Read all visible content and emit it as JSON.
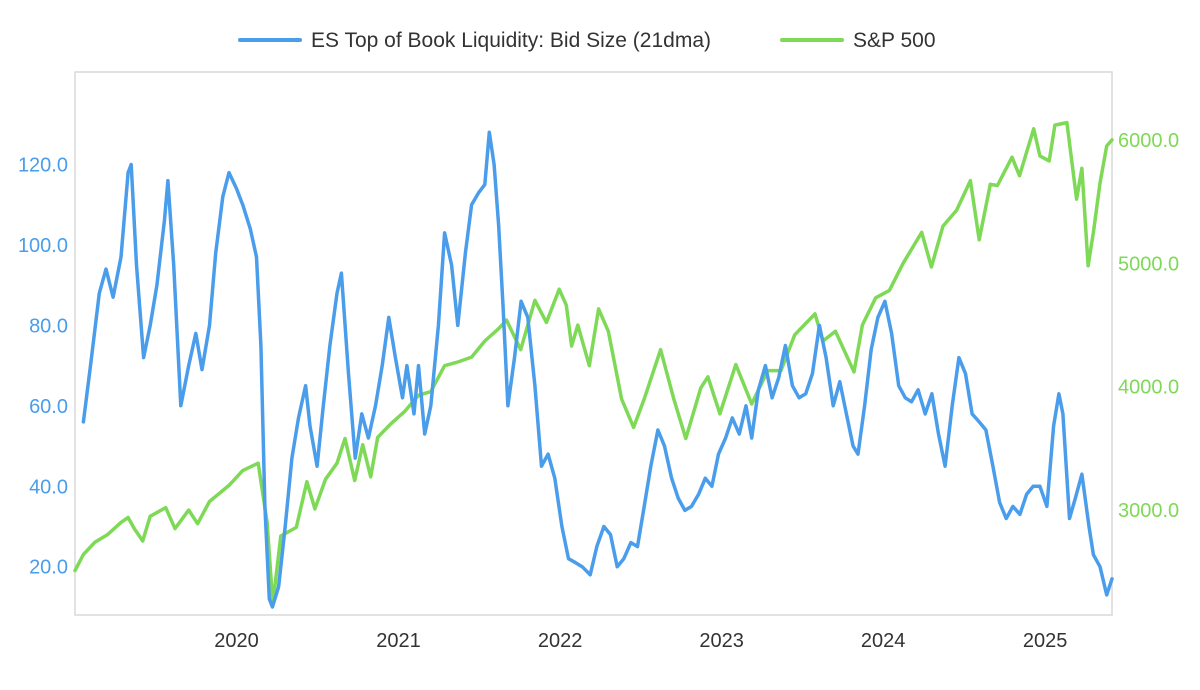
{
  "chart_data": {
    "type": "line",
    "title": "",
    "xlabel": "",
    "ylabel_left": "",
    "ylabel_right": "",
    "legend_position": "top-center",
    "grid": false,
    "x_ticks": [
      "2020",
      "2021",
      "2022",
      "2023",
      "2024",
      "2025"
    ],
    "xlim": [
      "2019-01-01",
      "2025-06-01"
    ],
    "left_axis": {
      "ylim": [
        8,
        143
      ],
      "ticks": [
        "20.0",
        "40.0",
        "60.0",
        "80.0",
        "100.0",
        "120.0"
      ]
    },
    "right_axis": {
      "ylim": [
        2150,
        6550
      ],
      "ticks": [
        "3000.0",
        "4000.0",
        "5000.0",
        "6000.0"
      ]
    },
    "series": [
      {
        "name": "ES Top of Book Liquidity: Bid Size (21dma)",
        "axis": "left",
        "color": "#4A9DEB",
        "points": [
          [
            "2019-01-20",
            56
          ],
          [
            "2019-02-05",
            70
          ],
          [
            "2019-02-25",
            88
          ],
          [
            "2019-03-12",
            94
          ],
          [
            "2019-03-28",
            87
          ],
          [
            "2019-04-15",
            97
          ],
          [
            "2019-05-01",
            118
          ],
          [
            "2019-05-08",
            120
          ],
          [
            "2019-05-20",
            95
          ],
          [
            "2019-06-05",
            72
          ],
          [
            "2019-06-20",
            80
          ],
          [
            "2019-07-05",
            90
          ],
          [
            "2019-07-22",
            106
          ],
          [
            "2019-07-30",
            116
          ],
          [
            "2019-08-12",
            95
          ],
          [
            "2019-08-28",
            60
          ],
          [
            "2019-09-15",
            70
          ],
          [
            "2019-10-01",
            78
          ],
          [
            "2019-10-15",
            69
          ],
          [
            "2019-11-01",
            80
          ],
          [
            "2019-11-15",
            98
          ],
          [
            "2019-12-01",
            112
          ],
          [
            "2019-12-15",
            118
          ],
          [
            "2020-01-01",
            114
          ],
          [
            "2020-01-15",
            110
          ],
          [
            "2020-02-01",
            104
          ],
          [
            "2020-02-15",
            97
          ],
          [
            "2020-02-25",
            75
          ],
          [
            "2020-03-05",
            35
          ],
          [
            "2020-03-15",
            12
          ],
          [
            "2020-03-22",
            10
          ],
          [
            "2020-04-05",
            15
          ],
          [
            "2020-04-20",
            30
          ],
          [
            "2020-05-05",
            47
          ],
          [
            "2020-05-20",
            57
          ],
          [
            "2020-06-05",
            65
          ],
          [
            "2020-06-15",
            55
          ],
          [
            "2020-07-01",
            45
          ],
          [
            "2020-07-15",
            60
          ],
          [
            "2020-07-30",
            75
          ],
          [
            "2020-08-15",
            88
          ],
          [
            "2020-08-25",
            93
          ],
          [
            "2020-09-10",
            68
          ],
          [
            "2020-09-25",
            47
          ],
          [
            "2020-10-10",
            58
          ],
          [
            "2020-10-25",
            52
          ],
          [
            "2020-11-10",
            60
          ],
          [
            "2020-11-25",
            70
          ],
          [
            "2020-12-10",
            82
          ],
          [
            "2020-12-25",
            72
          ],
          [
            "2021-01-10",
            62
          ],
          [
            "2021-01-20",
            70
          ],
          [
            "2021-02-05",
            58
          ],
          [
            "2021-02-15",
            70
          ],
          [
            "2021-03-01",
            53
          ],
          [
            "2021-03-15",
            60
          ],
          [
            "2021-04-01",
            80
          ],
          [
            "2021-04-15",
            103
          ],
          [
            "2021-05-01",
            95
          ],
          [
            "2021-05-15",
            80
          ],
          [
            "2021-06-01",
            98
          ],
          [
            "2021-06-15",
            110
          ],
          [
            "2021-07-01",
            113
          ],
          [
            "2021-07-15",
            115
          ],
          [
            "2021-07-25",
            128
          ],
          [
            "2021-08-05",
            120
          ],
          [
            "2021-08-15",
            105
          ],
          [
            "2021-08-25",
            85
          ],
          [
            "2021-09-05",
            60
          ],
          [
            "2021-09-20",
            72
          ],
          [
            "2021-10-05",
            86
          ],
          [
            "2021-10-20",
            82
          ],
          [
            "2021-11-05",
            65
          ],
          [
            "2021-11-20",
            45
          ],
          [
            "2021-12-05",
            48
          ],
          [
            "2021-12-20",
            42
          ],
          [
            "2022-01-05",
            30
          ],
          [
            "2022-01-20",
            22
          ],
          [
            "2022-02-05",
            21
          ],
          [
            "2022-02-20",
            20
          ],
          [
            "2022-03-10",
            18
          ],
          [
            "2022-03-25",
            25
          ],
          [
            "2022-04-10",
            30
          ],
          [
            "2022-04-25",
            28
          ],
          [
            "2022-05-10",
            20
          ],
          [
            "2022-05-25",
            22
          ],
          [
            "2022-06-10",
            26
          ],
          [
            "2022-06-25",
            25
          ],
          [
            "2022-07-10",
            35
          ],
          [
            "2022-07-25",
            45
          ],
          [
            "2022-08-10",
            54
          ],
          [
            "2022-08-25",
            50
          ],
          [
            "2022-09-10",
            42
          ],
          [
            "2022-09-25",
            37
          ],
          [
            "2022-10-10",
            34
          ],
          [
            "2022-10-25",
            35
          ],
          [
            "2022-11-10",
            38
          ],
          [
            "2022-11-25",
            42
          ],
          [
            "2022-12-10",
            40
          ],
          [
            "2022-12-25",
            48
          ],
          [
            "2023-01-10",
            52
          ],
          [
            "2023-01-25",
            57
          ],
          [
            "2023-02-10",
            53
          ],
          [
            "2023-02-25",
            60
          ],
          [
            "2023-03-10",
            52
          ],
          [
            "2023-03-25",
            64
          ],
          [
            "2023-04-10",
            70
          ],
          [
            "2023-04-25",
            62
          ],
          [
            "2023-05-10",
            67
          ],
          [
            "2023-05-25",
            75
          ],
          [
            "2023-06-10",
            65
          ],
          [
            "2023-06-25",
            62
          ],
          [
            "2023-07-10",
            63
          ],
          [
            "2023-07-25",
            68
          ],
          [
            "2023-08-10",
            80
          ],
          [
            "2023-08-25",
            72
          ],
          [
            "2023-09-10",
            60
          ],
          [
            "2023-09-25",
            66
          ],
          [
            "2023-10-10",
            58
          ],
          [
            "2023-10-25",
            50
          ],
          [
            "2023-11-05",
            48
          ],
          [
            "2023-11-20",
            60
          ],
          [
            "2023-12-05",
            74
          ],
          [
            "2023-12-20",
            82
          ],
          [
            "2024-01-05",
            86
          ],
          [
            "2024-01-20",
            78
          ],
          [
            "2024-02-05",
            65
          ],
          [
            "2024-02-20",
            62
          ],
          [
            "2024-03-05",
            61
          ],
          [
            "2024-03-20",
            64
          ],
          [
            "2024-04-05",
            58
          ],
          [
            "2024-04-20",
            63
          ],
          [
            "2024-05-05",
            53
          ],
          [
            "2024-05-20",
            45
          ],
          [
            "2024-06-05",
            60
          ],
          [
            "2024-06-20",
            72
          ],
          [
            "2024-07-05",
            68
          ],
          [
            "2024-07-20",
            58
          ],
          [
            "2024-08-05",
            56
          ],
          [
            "2024-08-20",
            54
          ],
          [
            "2024-09-05",
            45
          ],
          [
            "2024-09-20",
            36
          ],
          [
            "2024-10-05",
            32
          ],
          [
            "2024-10-20",
            35
          ],
          [
            "2024-11-05",
            33
          ],
          [
            "2024-11-20",
            38
          ],
          [
            "2024-12-05",
            40
          ],
          [
            "2024-12-20",
            40
          ],
          [
            "2025-01-05",
            35
          ],
          [
            "2025-01-20",
            55
          ],
          [
            "2025-02-01",
            63
          ],
          [
            "2025-02-10",
            58
          ],
          [
            "2025-02-25",
            32
          ],
          [
            "2025-03-10",
            37
          ],
          [
            "2025-03-25",
            43
          ],
          [
            "2025-04-10",
            30
          ],
          [
            "2025-04-20",
            23
          ],
          [
            "2025-05-05",
            20
          ],
          [
            "2025-05-20",
            13
          ],
          [
            "2025-06-01",
            17
          ]
        ]
      },
      {
        "name": "S&P 500",
        "axis": "right",
        "color": "#7ED957",
        "points": [
          [
            "2019-01-01",
            2510
          ],
          [
            "2019-01-20",
            2640
          ],
          [
            "2019-02-15",
            2740
          ],
          [
            "2019-03-15",
            2800
          ],
          [
            "2019-04-15",
            2900
          ],
          [
            "2019-05-01",
            2940
          ],
          [
            "2019-05-15",
            2850
          ],
          [
            "2019-06-03",
            2750
          ],
          [
            "2019-06-20",
            2950
          ],
          [
            "2019-07-25",
            3020
          ],
          [
            "2019-08-15",
            2850
          ],
          [
            "2019-09-15",
            3000
          ],
          [
            "2019-10-05",
            2890
          ],
          [
            "2019-11-01",
            3070
          ],
          [
            "2019-12-15",
            3200
          ],
          [
            "2020-01-15",
            3320
          ],
          [
            "2020-02-19",
            3380
          ],
          [
            "2020-03-10",
            2900
          ],
          [
            "2020-03-23",
            2240
          ],
          [
            "2020-04-10",
            2790
          ],
          [
            "2020-05-15",
            2860
          ],
          [
            "2020-06-08",
            3230
          ],
          [
            "2020-06-26",
            3010
          ],
          [
            "2020-07-20",
            3250
          ],
          [
            "2020-08-15",
            3380
          ],
          [
            "2020-09-02",
            3580
          ],
          [
            "2020-09-24",
            3240
          ],
          [
            "2020-10-12",
            3530
          ],
          [
            "2020-10-30",
            3270
          ],
          [
            "2020-11-15",
            3590
          ],
          [
            "2020-12-15",
            3700
          ],
          [
            "2021-01-15",
            3800
          ],
          [
            "2021-02-15",
            3930
          ],
          [
            "2021-03-15",
            3960
          ],
          [
            "2021-04-15",
            4170
          ],
          [
            "2021-05-15",
            4200
          ],
          [
            "2021-06-15",
            4240
          ],
          [
            "2021-07-15",
            4370
          ],
          [
            "2021-08-15",
            4470
          ],
          [
            "2021-09-02",
            4540
          ],
          [
            "2021-10-04",
            4300
          ],
          [
            "2021-11-05",
            4700
          ],
          [
            "2021-12-01",
            4520
          ],
          [
            "2021-12-30",
            4790
          ],
          [
            "2022-01-15",
            4660
          ],
          [
            "2022-01-27",
            4330
          ],
          [
            "2022-02-10",
            4500
          ],
          [
            "2022-03-08",
            4170
          ],
          [
            "2022-03-29",
            4630
          ],
          [
            "2022-04-20",
            4450
          ],
          [
            "2022-05-20",
            3900
          ],
          [
            "2022-06-16",
            3670
          ],
          [
            "2022-07-10",
            3900
          ],
          [
            "2022-08-16",
            4300
          ],
          [
            "2022-09-15",
            3900
          ],
          [
            "2022-10-12",
            3580
          ],
          [
            "2022-11-15",
            3990
          ],
          [
            "2022-12-01",
            4080
          ],
          [
            "2022-12-28",
            3780
          ],
          [
            "2023-02-02",
            4180
          ],
          [
            "2023-03-10",
            3860
          ],
          [
            "2023-04-15",
            4130
          ],
          [
            "2023-05-15",
            4130
          ],
          [
            "2023-06-15",
            4420
          ],
          [
            "2023-07-31",
            4590
          ],
          [
            "2023-08-18",
            4370
          ],
          [
            "2023-09-15",
            4450
          ],
          [
            "2023-10-27",
            4120
          ],
          [
            "2023-11-15",
            4500
          ],
          [
            "2023-12-15",
            4720
          ],
          [
            "2024-01-15",
            4780
          ],
          [
            "2024-02-15",
            5000
          ],
          [
            "2024-03-28",
            5250
          ],
          [
            "2024-04-19",
            4970
          ],
          [
            "2024-05-15",
            5300
          ],
          [
            "2024-06-15",
            5430
          ],
          [
            "2024-07-16",
            5670
          ],
          [
            "2024-08-05",
            5190
          ],
          [
            "2024-08-30",
            5640
          ],
          [
            "2024-09-15",
            5630
          ],
          [
            "2024-10-18",
            5860
          ],
          [
            "2024-11-04",
            5710
          ],
          [
            "2024-12-06",
            6090
          ],
          [
            "2024-12-20",
            5870
          ],
          [
            "2025-01-10",
            5830
          ],
          [
            "2025-01-23",
            6120
          ],
          [
            "2025-02-19",
            6140
          ],
          [
            "2025-03-13",
            5520
          ],
          [
            "2025-03-25",
            5770
          ],
          [
            "2025-04-08",
            4980
          ],
          [
            "2025-04-20",
            5250
          ],
          [
            "2025-05-05",
            5650
          ],
          [
            "2025-05-20",
            5950
          ],
          [
            "2025-06-01",
            6000
          ]
        ]
      }
    ]
  }
}
